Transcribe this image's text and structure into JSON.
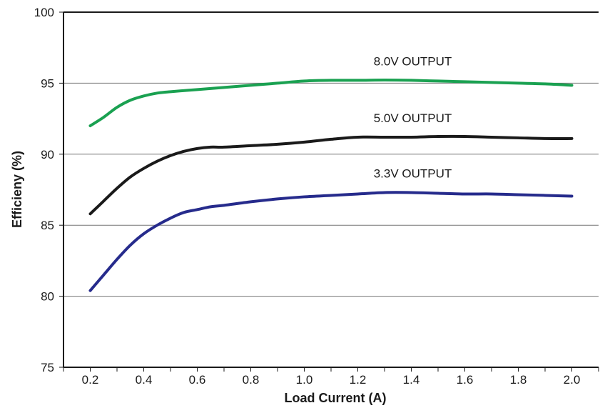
{
  "chart_data": {
    "type": "line",
    "xlabel": "Load Current (A)",
    "ylabel": "Efficieny (%)",
    "xlim": [
      0.1,
      2.1
    ],
    "ylim": [
      75,
      100
    ],
    "xticks": [
      "0.2",
      "0.4",
      "0.6",
      "0.8",
      "1.0",
      "1.2",
      "1.4",
      "1.6",
      "1.8",
      "2.0"
    ],
    "xtick_values": [
      0.2,
      0.4,
      0.6,
      0.8,
      1.0,
      1.2,
      1.4,
      1.6,
      1.8,
      2.0
    ],
    "yticks": [
      "75",
      "80",
      "85",
      "90",
      "95",
      "100"
    ],
    "ytick_values": [
      75,
      80,
      85,
      90,
      95,
      100
    ],
    "grid": true,
    "series": [
      {
        "name": "8.0V OUTPUT",
        "color": "#1aa151",
        "x": [
          0.2,
          0.25,
          0.3,
          0.35,
          0.4,
          0.45,
          0.5,
          0.6,
          0.7,
          0.8,
          0.9,
          1.0,
          1.1,
          1.2,
          1.3,
          1.4,
          1.5,
          1.6,
          1.7,
          1.8,
          1.9,
          2.0
        ],
        "y": [
          92.0,
          92.6,
          93.3,
          93.8,
          94.1,
          94.3,
          94.4,
          94.55,
          94.7,
          94.85,
          95.0,
          95.15,
          95.2,
          95.2,
          95.22,
          95.2,
          95.15,
          95.1,
          95.05,
          95.0,
          94.95,
          94.85
        ]
      },
      {
        "name": "5.0V OUTPUT",
        "color": "#1a1a1a",
        "x": [
          0.2,
          0.25,
          0.3,
          0.35,
          0.4,
          0.45,
          0.5,
          0.55,
          0.6,
          0.65,
          0.7,
          0.8,
          0.9,
          1.0,
          1.1,
          1.2,
          1.3,
          1.4,
          1.5,
          1.6,
          1.7,
          1.8,
          1.9,
          2.0
        ],
        "y": [
          85.8,
          86.7,
          87.6,
          88.4,
          89.0,
          89.5,
          89.9,
          90.2,
          90.4,
          90.5,
          90.5,
          90.6,
          90.7,
          90.85,
          91.05,
          91.2,
          91.2,
          91.2,
          91.25,
          91.25,
          91.2,
          91.15,
          91.1,
          91.1
        ]
      },
      {
        "name": "3.3V OUTPUT",
        "color": "#262b8c",
        "x": [
          0.2,
          0.25,
          0.3,
          0.35,
          0.4,
          0.45,
          0.5,
          0.55,
          0.6,
          0.65,
          0.7,
          0.8,
          0.9,
          1.0,
          1.1,
          1.2,
          1.3,
          1.4,
          1.5,
          1.6,
          1.7,
          1.8,
          1.9,
          2.0
        ],
        "y": [
          80.4,
          81.5,
          82.6,
          83.6,
          84.4,
          85.0,
          85.5,
          85.9,
          86.1,
          86.3,
          86.4,
          86.65,
          86.85,
          87.0,
          87.1,
          87.2,
          87.3,
          87.3,
          87.25,
          87.2,
          87.2,
          87.15,
          87.1,
          87.05
        ]
      }
    ]
  }
}
